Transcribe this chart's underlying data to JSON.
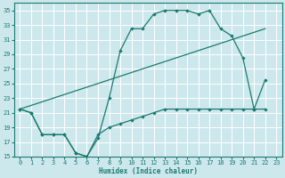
{
  "xlabel": "Humidex (Indice chaleur)",
  "xlim": [
    -0.5,
    23.5
  ],
  "ylim": [
    15,
    36
  ],
  "xticks": [
    0,
    1,
    2,
    3,
    4,
    5,
    6,
    7,
    8,
    9,
    10,
    11,
    12,
    13,
    14,
    15,
    16,
    17,
    18,
    19,
    20,
    21,
    22,
    23
  ],
  "yticks": [
    15,
    17,
    19,
    21,
    23,
    25,
    27,
    29,
    31,
    33,
    35
  ],
  "bg_color": "#cde8ec",
  "line_color": "#1a7a6e",
  "grid_color": "#ffffff",
  "line1_x": [
    0,
    1,
    2,
    3,
    4,
    5,
    6,
    7,
    8,
    9,
    10,
    11,
    12,
    13,
    14,
    15,
    16,
    17,
    18,
    19,
    20,
    21,
    22
  ],
  "line1_y": [
    21.5,
    21.0,
    18.0,
    18.0,
    18.0,
    15.5,
    15.0,
    17.5,
    23.0,
    29.5,
    32.5,
    32.5,
    34.5,
    35.0,
    35.0,
    35.0,
    34.5,
    35.0,
    32.5,
    31.5,
    28.5,
    21.5,
    25.5
  ],
  "line2_x": [
    0,
    22
  ],
  "line2_y": [
    21.5,
    32.5
  ],
  "line3_x": [
    0,
    1,
    2,
    3,
    4,
    5,
    6,
    7,
    8,
    9,
    10,
    11,
    12,
    13,
    14,
    15,
    16,
    17,
    18,
    19,
    20,
    21,
    22
  ],
  "line3_y": [
    21.5,
    21.0,
    18.0,
    18.0,
    18.0,
    15.5,
    15.0,
    18.0,
    19.0,
    19.5,
    20.0,
    20.5,
    21.0,
    21.5,
    21.5,
    21.5,
    21.5,
    21.5,
    21.5,
    21.5,
    21.5,
    21.5,
    21.5
  ]
}
